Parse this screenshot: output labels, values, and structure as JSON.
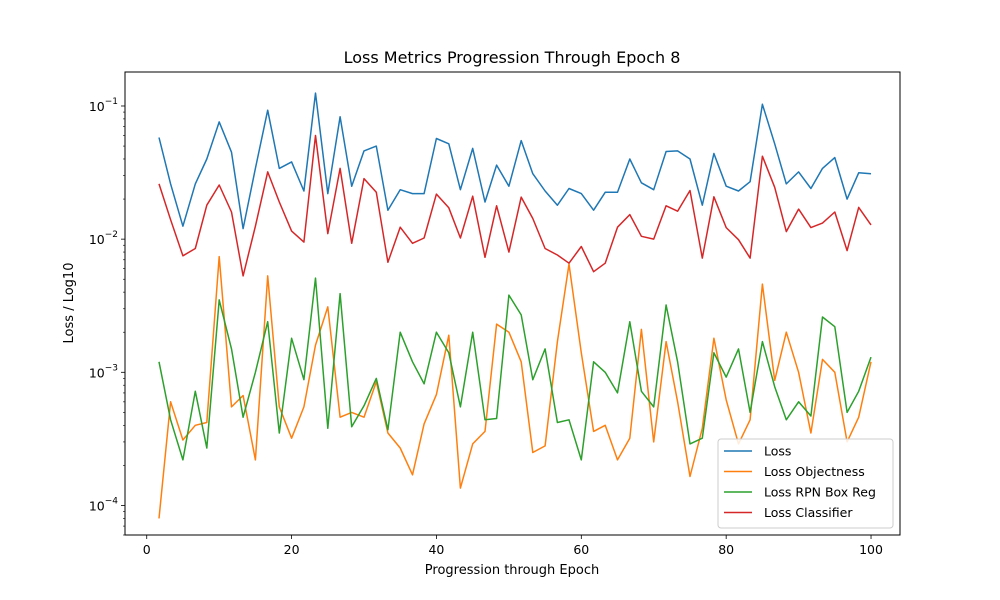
{
  "chart_data": {
    "type": "line",
    "title": "Loss Metrics Progression Through Epoch 8",
    "xlabel": "Progression through Epoch",
    "ylabel": "Loss / Log10",
    "yscale": "log",
    "xlim": [
      -3,
      104
    ],
    "ylim": [
      6e-05,
      0.18
    ],
    "xticks": [
      0,
      20,
      40,
      60,
      80,
      100
    ],
    "xtick_labels": [
      "0",
      "20",
      "40",
      "60",
      "80",
      "100"
    ],
    "yticks": [
      0.0001,
      0.001,
      0.01,
      0.1
    ],
    "ytick_labels": [
      "10",
      "10",
      "10",
      "10"
    ],
    "ytick_exponents": [
      "−4",
      "−3",
      "−2",
      "−1"
    ],
    "grid": false,
    "legend_position": "bottom-right",
    "x": [
      1.7,
      3.3,
      5.0,
      6.7,
      8.3,
      10.0,
      11.7,
      13.3,
      15.0,
      16.7,
      18.3,
      20.0,
      21.7,
      23.3,
      25.0,
      26.7,
      28.3,
      30.0,
      31.7,
      33.3,
      35.0,
      36.7,
      38.3,
      40.0,
      41.7,
      43.3,
      45.0,
      46.7,
      48.3,
      50.0,
      51.7,
      53.3,
      55.0,
      56.7,
      58.3,
      60.0,
      61.7,
      63.3,
      65.0,
      66.7,
      68.3,
      70.0,
      71.7,
      73.3,
      75.0,
      76.7,
      78.3,
      80.0,
      81.7,
      83.3,
      85.0,
      86.7,
      88.3,
      90.0,
      91.7,
      93.3,
      95.0,
      96.7,
      98.3,
      100.0
    ],
    "series": [
      {
        "name": "Loss",
        "color": "#1f77b4",
        "values": [
          0.058,
          0.026,
          0.0125,
          0.026,
          0.04,
          0.076,
          0.045,
          0.012,
          0.034,
          0.093,
          0.034,
          0.038,
          0.023,
          0.125,
          0.022,
          0.083,
          0.025,
          0.046,
          0.05,
          0.0165,
          0.0235,
          0.022,
          0.022,
          0.057,
          0.052,
          0.0235,
          0.048,
          0.019,
          0.036,
          0.025,
          0.055,
          0.031,
          0.023,
          0.018,
          0.024,
          0.022,
          0.0165,
          0.0225,
          0.0225,
          0.04,
          0.0265,
          0.0235,
          0.0455,
          0.046,
          0.04,
          0.018,
          0.044,
          0.025,
          0.023,
          0.027,
          0.103,
          0.052,
          0.026,
          0.032,
          0.024,
          0.034,
          0.041,
          0.02,
          0.0315,
          0.031
        ]
      },
      {
        "name": "Loss Objectness",
        "color": "#ff7f0e",
        "values": [
          8e-05,
          0.0006,
          0.00031,
          0.0004,
          0.00042,
          0.0074,
          0.00055,
          0.00067,
          0.00022,
          0.0053,
          0.00055,
          0.00032,
          0.00055,
          0.0016,
          0.0031,
          0.00046,
          0.0005,
          0.00046,
          0.00085,
          0.00035,
          0.00027,
          0.00017,
          0.00041,
          0.00068,
          0.0019,
          0.000135,
          0.00029,
          0.00036,
          0.0023,
          0.002,
          0.0012,
          0.00025,
          0.00028,
          0.0017,
          0.0065,
          0.0014,
          0.00036,
          0.0004,
          0.00022,
          0.00032,
          0.0021,
          0.0003,
          0.0017,
          0.0006,
          0.000165,
          0.00038,
          0.0018,
          0.00062,
          0.00029,
          0.00044,
          0.0046,
          0.00087,
          0.002,
          0.001,
          0.00035,
          0.00125,
          0.001,
          0.0003,
          0.00046,
          0.0012
        ]
      },
      {
        "name": "Loss RPN Box Reg",
        "color": "#2ca02c",
        "values": [
          0.0012,
          0.00044,
          0.00022,
          0.00072,
          0.00027,
          0.0035,
          0.0015,
          0.00046,
          0.001,
          0.0024,
          0.00035,
          0.0018,
          0.00088,
          0.0051,
          0.00038,
          0.0039,
          0.00039,
          0.00056,
          0.0009,
          0.00037,
          0.002,
          0.0012,
          0.00082,
          0.002,
          0.0014,
          0.00055,
          0.002,
          0.00044,
          0.00045,
          0.0038,
          0.0027,
          0.00088,
          0.0015,
          0.00042,
          0.00044,
          0.00022,
          0.0012,
          0.001,
          0.0007,
          0.0024,
          0.00072,
          0.00055,
          0.0032,
          0.0012,
          0.00029,
          0.00032,
          0.0014,
          0.00092,
          0.0015,
          0.0005,
          0.0017,
          0.00078,
          0.00044,
          0.0006,
          0.00047,
          0.0026,
          0.0022,
          0.0005,
          0.00072,
          0.0013
        ]
      },
      {
        "name": "Loss Classifier",
        "color": "#d62728",
        "values": [
          0.026,
          0.014,
          0.0075,
          0.0085,
          0.018,
          0.0255,
          0.016,
          0.0053,
          0.0125,
          0.032,
          0.019,
          0.0115,
          0.0095,
          0.06,
          0.011,
          0.034,
          0.0093,
          0.0285,
          0.0225,
          0.0067,
          0.0123,
          0.0093,
          0.0102,
          0.0218,
          0.0172,
          0.0102,
          0.021,
          0.0073,
          0.0178,
          0.008,
          0.0207,
          0.0143,
          0.0085,
          0.0076,
          0.0066,
          0.0088,
          0.0057,
          0.0066,
          0.0123,
          0.0153,
          0.0105,
          0.01,
          0.0178,
          0.0162,
          0.0232,
          0.0072,
          0.0208,
          0.0122,
          0.0099,
          0.0072,
          0.042,
          0.0245,
          0.0114,
          0.0168,
          0.0122,
          0.0132,
          0.016,
          0.0082,
          0.0173,
          0.0128
        ]
      }
    ]
  }
}
